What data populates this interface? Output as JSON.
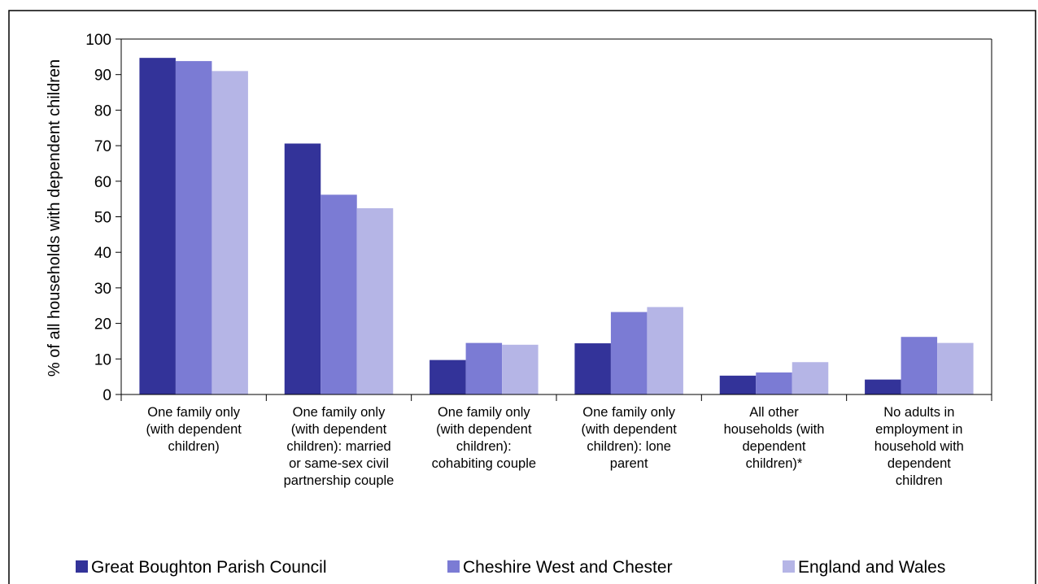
{
  "chart_data": {
    "type": "bar",
    "ylabel": "% of all households with dependent children",
    "ylim": [
      0,
      100
    ],
    "yticks": [
      0,
      10,
      20,
      30,
      40,
      50,
      60,
      70,
      80,
      90,
      100
    ],
    "grid": false,
    "legend_position": "bottom",
    "categories": [
      [
        "One family only",
        "(with dependent",
        "children)"
      ],
      [
        "One family only",
        "(with dependent",
        "children): married",
        "or same-sex civil",
        "partnership couple"
      ],
      [
        "One family only",
        "(with dependent",
        "children):",
        "cohabiting couple"
      ],
      [
        "One family only",
        "(with dependent",
        "children): lone",
        "parent"
      ],
      [
        "All other",
        "households (with",
        "dependent",
        "children)*"
      ],
      [
        "No adults in",
        "employment in",
        "household with",
        "dependent",
        "children"
      ]
    ],
    "series": [
      {
        "name": "Great Boughton Parish Council",
        "color": "#333399",
        "values": [
          94.7,
          70.6,
          9.7,
          14.4,
          5.3,
          4.2
        ]
      },
      {
        "name": "Cheshire West and Chester",
        "color": "#7b7bd4",
        "values": [
          93.8,
          56.2,
          14.5,
          23.2,
          6.2,
          16.2
        ]
      },
      {
        "name": "England and Wales",
        "color": "#b5b5e6",
        "values": [
          91.0,
          52.4,
          14.0,
          24.6,
          9.1,
          14.5
        ]
      }
    ]
  }
}
